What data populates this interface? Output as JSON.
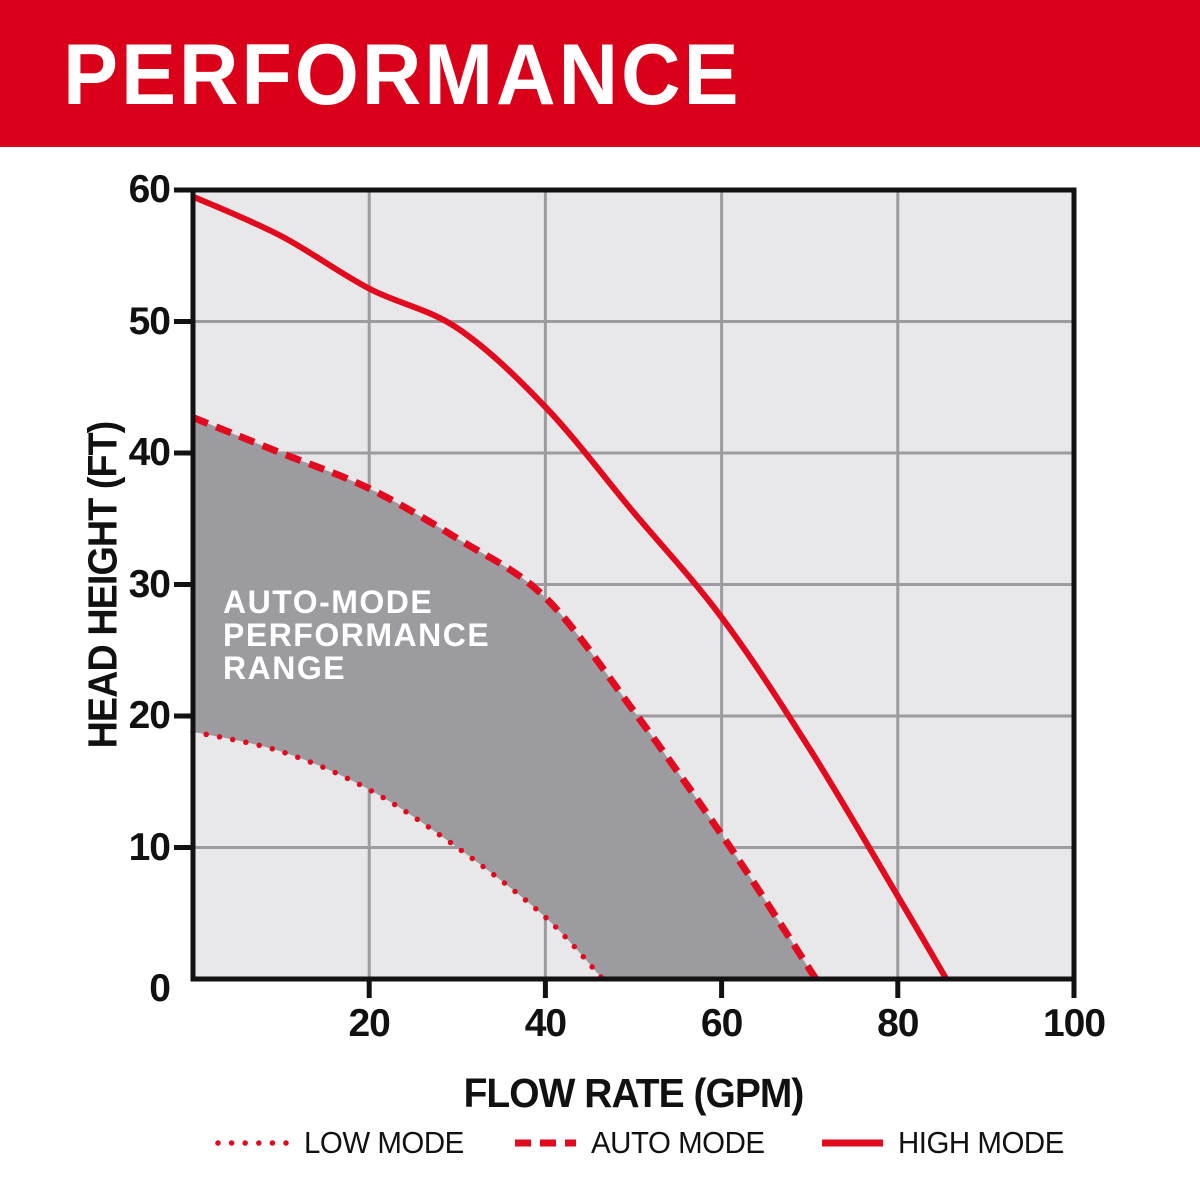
{
  "banner": {
    "title": "PERFORMANCE",
    "bg_color": "#DB0019",
    "text_color": "#FFFFFF"
  },
  "chart_data": {
    "type": "line",
    "title": "",
    "xlabel": "FLOW RATE (GPM)",
    "ylabel": "HEAD HEIGHT (FT)",
    "xlim": [
      0,
      100
    ],
    "ylim": [
      0,
      60
    ],
    "x_ticks": [
      0,
      20,
      40,
      60,
      80,
      100
    ],
    "y_ticks": [
      0,
      10,
      20,
      30,
      40,
      50,
      60
    ],
    "grid": true,
    "legend_position": "bottom",
    "plot_bg_color": "#E8E8EA",
    "grid_color": "#9C9CA0",
    "axis_color": "#121212",
    "series": [
      {
        "name": "LOW MODE",
        "style": "dotted",
        "color": "#E20A1E",
        "points": [
          [
            0,
            18.8
          ],
          [
            10,
            17.3
          ],
          [
            20,
            14.4
          ],
          [
            30,
            10
          ],
          [
            40,
            4.7
          ],
          [
            46.5,
            0
          ]
        ]
      },
      {
        "name": "AUTO MODE",
        "style": "dashed",
        "color": "#E20A1E",
        "points": [
          [
            0,
            42.7
          ],
          [
            10,
            40
          ],
          [
            20,
            37.3
          ],
          [
            30,
            33.5
          ],
          [
            40,
            29
          ],
          [
            50,
            20.4
          ],
          [
            61,
            10
          ],
          [
            70.7,
            0
          ]
        ]
      },
      {
        "name": "HIGH MODE",
        "style": "solid",
        "color": "#E20A1E",
        "points": [
          [
            0,
            59.5
          ],
          [
            10,
            56.5
          ],
          [
            20,
            52.5
          ],
          [
            30,
            49.5
          ],
          [
            40,
            43.5
          ],
          [
            50,
            35.5
          ],
          [
            60,
            27.5
          ],
          [
            70,
            17.5
          ],
          [
            80,
            6.3
          ],
          [
            85.5,
            0
          ]
        ]
      }
    ],
    "shaded_region": {
      "between": [
        "LOW MODE",
        "AUTO MODE"
      ],
      "fill_color": "#9B9BA0",
      "label_lines": [
        "AUTO-MODE",
        "PERFORMANCE",
        "RANGE"
      ]
    }
  },
  "legend": {
    "marker_color": "#E20A1E",
    "items": [
      {
        "label": "LOW MODE",
        "style": "dotted"
      },
      {
        "label": "AUTO MODE",
        "style": "dashed"
      },
      {
        "label": "HIGH MODE",
        "style": "solid"
      }
    ]
  }
}
